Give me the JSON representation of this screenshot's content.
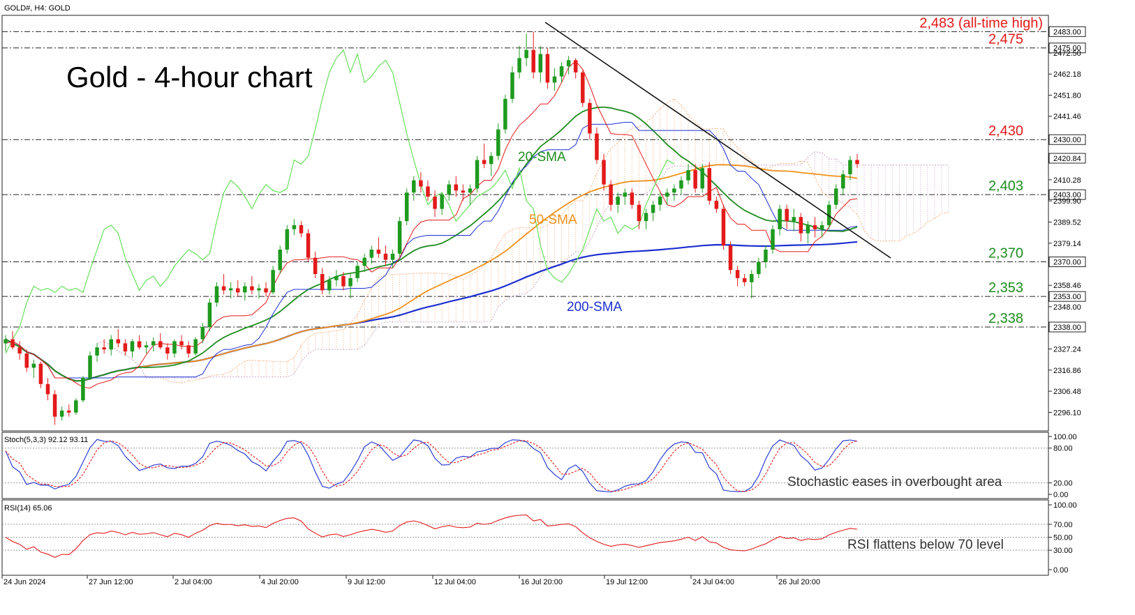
{
  "header": {
    "symbol": "GOLD#, H4:  GOLD"
  },
  "title": "Gold - 4-hour chart",
  "colors": {
    "bull": "#1e9a1e",
    "bear": "#e31a1a",
    "sma20": "#1e8c1e",
    "sma50": "#f0901a",
    "sma200": "#1c2fd0",
    "tenkan": "#e31a1a",
    "kijun": "#1c2fd0",
    "chikou": "#66e05a",
    "resistance": "#e31a1a",
    "support": "#1e8c1e"
  },
  "price_axis": {
    "ticks": [
      "2483.00",
      "2475.00",
      "2472.50",
      "2462.18",
      "2451.80",
      "2441.46",
      "2430.00",
      "2420.84",
      "2410.28",
      "2403.00",
      "2399.90",
      "2389.52",
      "2379.14",
      "2370.00",
      "2358.46",
      "2353.00",
      "2348.00",
      "2338.00",
      "2327.24",
      "2316.86",
      "2306.48",
      "2296.10"
    ],
    "highlighted": [
      "2483.00",
      "2475.00",
      "2430.00",
      "2420.84",
      "2403.00",
      "2370.00",
      "2353.00",
      "2338.00"
    ]
  },
  "time_axis": [
    "24 Jun 2024",
    "27 Jun 12:00",
    "2 Jul 04:00",
    "4 Jul 20:00",
    "9 Jul 12:00",
    "12 Jul 04:00",
    "16 Jul 20:00",
    "19 Jul 12:00",
    "24 Jul 04:00",
    "26 Jul 20:00"
  ],
  "levels": [
    {
      "label": "2,483 (all-time high)",
      "value": 2483,
      "color": "resistance"
    },
    {
      "label": "2,475",
      "value": 2475,
      "color": "resistance"
    },
    {
      "label": "2,430",
      "value": 2430,
      "color": "resistance"
    },
    {
      "label": "2,403",
      "value": 2403,
      "color": "support"
    },
    {
      "label": "2,370",
      "value": 2370,
      "color": "support"
    },
    {
      "label": "2,353",
      "value": 2353,
      "color": "support"
    },
    {
      "label": "2,338",
      "value": 2338,
      "color": "support"
    }
  ],
  "labels": {
    "sma20": "20-SMA",
    "sma50": "50-SMA",
    "sma200": "200-SMA"
  },
  "stoch": {
    "header": "Stoch(5,3,3) 92.12 93.11",
    "ticks": [
      "100.00",
      "80.00",
      "20.00",
      "0.00"
    ],
    "note": "Stochastic eases in overbought area"
  },
  "rsi": {
    "header": "RSI(14) 65.06",
    "ticks": [
      "100.00",
      "70.00",
      "50.00",
      "30.00",
      "0.00"
    ],
    "note": "RSI flattens below 70 level"
  },
  "chart_data": {
    "type": "candlestick",
    "x_index_range": [
      0,
      124
    ],
    "ylim": [
      2287,
      2491
    ],
    "candles": [
      [
        0,
        2330,
        2334,
        2326,
        2332
      ],
      [
        1,
        2332,
        2336,
        2327,
        2328
      ],
      [
        2,
        2328,
        2331,
        2322,
        2325
      ],
      [
        3,
        2325,
        2327,
        2316,
        2318
      ],
      [
        4,
        2318,
        2322,
        2313,
        2320
      ],
      [
        5,
        2320,
        2321,
        2308,
        2310
      ],
      [
        6,
        2310,
        2313,
        2302,
        2305
      ],
      [
        7,
        2305,
        2307,
        2290,
        2294
      ],
      [
        8,
        2294,
        2299,
        2292,
        2297
      ],
      [
        9,
        2297,
        2300,
        2294,
        2296
      ],
      [
        10,
        2296,
        2303,
        2295,
        2302
      ],
      [
        11,
        2302,
        2314,
        2301,
        2313
      ],
      [
        12,
        2313,
        2326,
        2312,
        2324
      ],
      [
        13,
        2324,
        2330,
        2321,
        2328
      ],
      [
        14,
        2328,
        2332,
        2325,
        2327
      ],
      [
        15,
        2327,
        2334,
        2324,
        2332
      ],
      [
        16,
        2332,
        2337,
        2328,
        2330
      ],
      [
        17,
        2330,
        2332,
        2324,
        2326
      ],
      [
        18,
        2326,
        2332,
        2323,
        2331
      ],
      [
        19,
        2331,
        2334,
        2327,
        2328
      ],
      [
        20,
        2328,
        2331,
        2325,
        2329
      ],
      [
        21,
        2329,
        2333,
        2326,
        2331
      ],
      [
        22,
        2331,
        2335,
        2327,
        2328
      ],
      [
        23,
        2328,
        2330,
        2322,
        2325
      ],
      [
        24,
        2325,
        2332,
        2323,
        2331
      ],
      [
        25,
        2331,
        2334,
        2327,
        2329
      ],
      [
        26,
        2329,
        2331,
        2323,
        2325
      ],
      [
        27,
        2325,
        2333,
        2324,
        2332
      ],
      [
        28,
        2332,
        2340,
        2330,
        2338
      ],
      [
        29,
        2338,
        2352,
        2336,
        2350
      ],
      [
        30,
        2350,
        2360,
        2348,
        2358
      ],
      [
        31,
        2358,
        2364,
        2354,
        2356
      ],
      [
        32,
        2356,
        2360,
        2352,
        2357
      ],
      [
        33,
        2357,
        2361,
        2353,
        2355
      ],
      [
        34,
        2355,
        2360,
        2351,
        2358
      ],
      [
        35,
        2358,
        2363,
        2354,
        2356
      ],
      [
        36,
        2356,
        2359,
        2352,
        2357
      ],
      [
        37,
        2357,
        2360,
        2353,
        2355
      ],
      [
        38,
        2355,
        2368,
        2354,
        2366
      ],
      [
        39,
        2366,
        2378,
        2364,
        2376
      ],
      [
        40,
        2376,
        2388,
        2374,
        2386
      ],
      [
        41,
        2386,
        2391,
        2383,
        2388
      ],
      [
        42,
        2388,
        2390,
        2382,
        2384
      ],
      [
        43,
        2384,
        2386,
        2370,
        2372
      ],
      [
        44,
        2372,
        2375,
        2362,
        2364
      ],
      [
        45,
        2364,
        2367,
        2354,
        2356
      ],
      [
        46,
        2356,
        2363,
        2354,
        2361
      ],
      [
        47,
        2361,
        2366,
        2358,
        2363
      ],
      [
        48,
        2363,
        2365,
        2356,
        2358
      ],
      [
        49,
        2358,
        2364,
        2352,
        2362
      ],
      [
        50,
        2362,
        2370,
        2360,
        2368
      ],
      [
        51,
        2368,
        2374,
        2365,
        2372
      ],
      [
        52,
        2372,
        2378,
        2369,
        2376
      ],
      [
        53,
        2376,
        2382,
        2372,
        2374
      ],
      [
        54,
        2374,
        2378,
        2368,
        2371
      ],
      [
        55,
        2371,
        2376,
        2367,
        2374
      ],
      [
        56,
        2374,
        2392,
        2372,
        2390
      ],
      [
        57,
        2390,
        2406,
        2388,
        2404
      ],
      [
        58,
        2404,
        2412,
        2400,
        2410
      ],
      [
        59,
        2410,
        2414,
        2404,
        2407
      ],
      [
        60,
        2407,
        2410,
        2400,
        2402
      ],
      [
        61,
        2402,
        2405,
        2392,
        2396
      ],
      [
        62,
        2396,
        2404,
        2393,
        2403
      ],
      [
        63,
        2403,
        2410,
        2400,
        2408
      ],
      [
        64,
        2408,
        2412,
        2402,
        2405
      ],
      [
        65,
        2405,
        2408,
        2400,
        2404
      ],
      [
        66,
        2404,
        2408,
        2398,
        2406
      ],
      [
        67,
        2406,
        2422,
        2404,
        2420
      ],
      [
        68,
        2420,
        2428,
        2416,
        2418
      ],
      [
        69,
        2418,
        2424,
        2412,
        2422
      ],
      [
        70,
        2422,
        2438,
        2420,
        2435
      ],
      [
        71,
        2435,
        2452,
        2433,
        2450
      ],
      [
        72,
        2450,
        2466,
        2448,
        2463
      ],
      [
        73,
        2463,
        2476,
        2460,
        2470
      ],
      [
        74,
        2470,
        2482,
        2466,
        2474
      ],
      [
        75,
        2474,
        2483,
        2460,
        2463
      ],
      [
        76,
        2463,
        2476,
        2458,
        2472
      ],
      [
        77,
        2472,
        2475,
        2455,
        2458
      ],
      [
        78,
        2458,
        2465,
        2454,
        2461
      ],
      [
        79,
        2461,
        2468,
        2458,
        2466
      ],
      [
        80,
        2466,
        2471,
        2462,
        2469
      ],
      [
        81,
        2469,
        2470,
        2460,
        2463
      ],
      [
        82,
        2463,
        2464,
        2446,
        2448
      ],
      [
        83,
        2448,
        2450,
        2430,
        2433
      ],
      [
        84,
        2433,
        2436,
        2418,
        2420
      ],
      [
        85,
        2420,
        2423,
        2405,
        2408
      ],
      [
        86,
        2408,
        2410,
        2395,
        2398
      ],
      [
        87,
        2398,
        2404,
        2394,
        2402
      ],
      [
        88,
        2402,
        2406,
        2398,
        2404
      ],
      [
        89,
        2404,
        2406,
        2396,
        2398
      ],
      [
        90,
        2398,
        2400,
        2386,
        2390
      ],
      [
        91,
        2390,
        2396,
        2386,
        2394
      ],
      [
        92,
        2394,
        2400,
        2390,
        2398
      ],
      [
        93,
        2398,
        2404,
        2395,
        2402
      ],
      [
        94,
        2402,
        2406,
        2398,
        2404
      ],
      [
        95,
        2404,
        2408,
        2400,
        2406
      ],
      [
        96,
        2406,
        2412,
        2403,
        2410
      ],
      [
        97,
        2410,
        2418,
        2408,
        2415
      ],
      [
        98,
        2415,
        2418,
        2404,
        2406
      ],
      [
        99,
        2406,
        2418,
        2404,
        2416
      ],
      [
        100,
        2416,
        2419,
        2398,
        2400
      ],
      [
        101,
        2400,
        2402,
        2394,
        2396
      ],
      [
        102,
        2396,
        2398,
        2376,
        2378
      ],
      [
        103,
        2378,
        2380,
        2364,
        2366
      ],
      [
        104,
        2366,
        2368,
        2358,
        2362
      ],
      [
        105,
        2362,
        2364,
        2358,
        2360
      ],
      [
        106,
        2360,
        2366,
        2352,
        2364
      ],
      [
        107,
        2364,
        2372,
        2362,
        2370
      ],
      [
        108,
        2370,
        2378,
        2367,
        2376
      ],
      [
        109,
        2376,
        2388,
        2374,
        2386
      ],
      [
        110,
        2386,
        2398,
        2383,
        2396
      ],
      [
        111,
        2396,
        2398,
        2386,
        2390
      ],
      [
        112,
        2390,
        2396,
        2385,
        2392
      ],
      [
        113,
        2392,
        2394,
        2380,
        2384
      ],
      [
        114,
        2384,
        2390,
        2379,
        2388
      ],
      [
        115,
        2388,
        2392,
        2382,
        2386
      ],
      [
        116,
        2386,
        2390,
        2382,
        2388
      ],
      [
        117,
        2388,
        2400,
        2386,
        2398
      ],
      [
        118,
        2398,
        2408,
        2396,
        2406
      ],
      [
        119,
        2406,
        2415,
        2403,
        2413
      ],
      [
        120,
        2413,
        2422,
        2410,
        2420
      ],
      [
        121,
        2420,
        2423,
        2416,
        2418
      ]
    ]
  }
}
